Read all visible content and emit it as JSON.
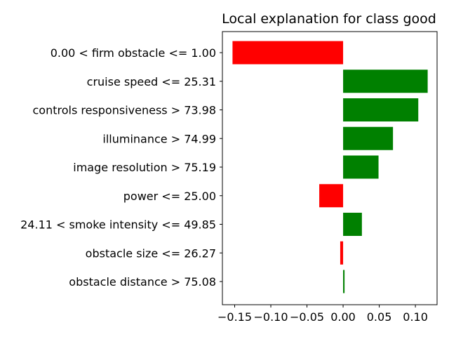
{
  "chart_data": {
    "type": "bar",
    "orientation": "horizontal",
    "title": "Local explanation for class good",
    "xlabel": "",
    "ylabel": "",
    "categories": [
      "0.00 < firm obstacle <= 1.00",
      "cruise speed <= 25.31",
      "controls responsiveness > 73.98",
      "illuminance > 74.99",
      "image resolution > 75.19",
      "power <= 25.00",
      "24.11 < smoke intensity <= 49.85",
      "obstacle size <= 26.27",
      "obstacle distance > 75.08"
    ],
    "values": [
      -0.153,
      0.117,
      0.104,
      0.069,
      0.049,
      -0.033,
      0.026,
      -0.004,
      0.002
    ],
    "xlim": [
      -0.167,
      0.13
    ],
    "xticks": [
      -0.15,
      -0.1,
      -0.05,
      0.0,
      0.05,
      0.1
    ],
    "xtick_labels": [
      "−0.15",
      "−0.10",
      "−0.05",
      "0.00",
      "0.05",
      "0.10"
    ],
    "colors": {
      "positive": "#008000",
      "negative": "#ff0000"
    },
    "grid": false,
    "legend": "none"
  }
}
